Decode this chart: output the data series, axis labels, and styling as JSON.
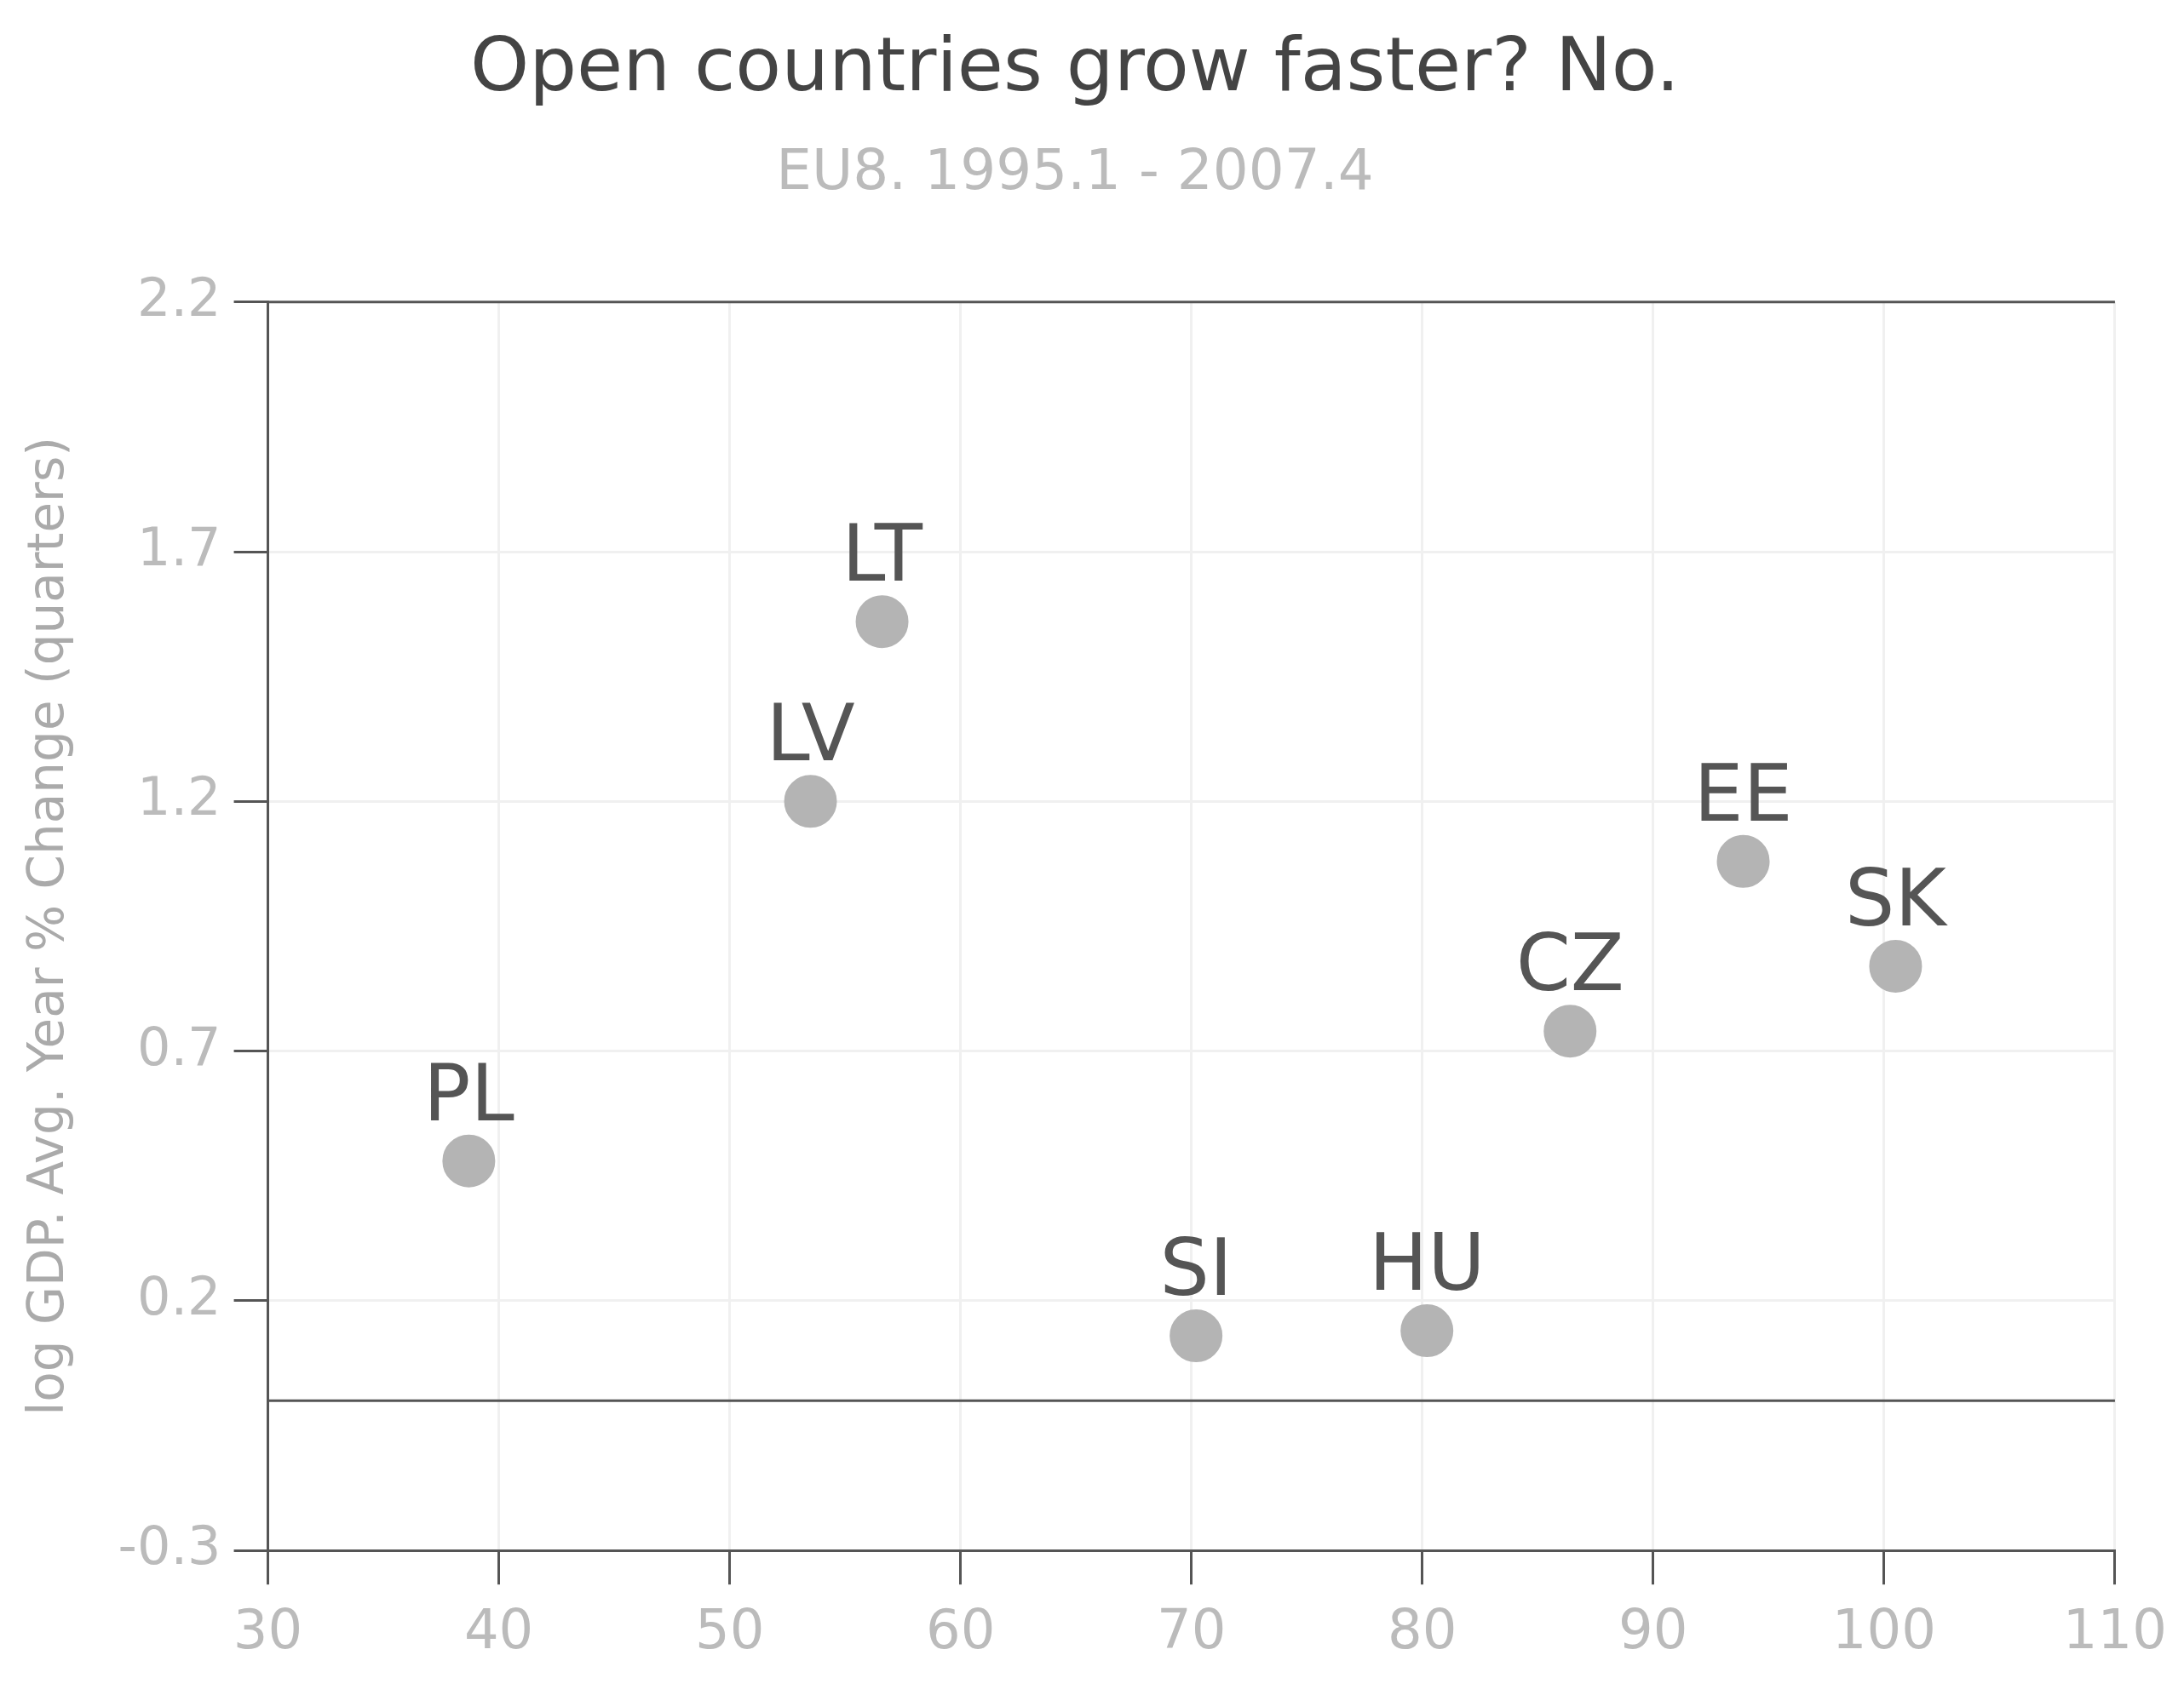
{
  "chart_data": {
    "type": "scatter",
    "title": "Open countries grow faster? No.",
    "subtitle": "EU8. 1995.1 - 2007.4",
    "ylabel": "log GDP. Avg. Year % Change (quarters)",
    "x": [
      38.7,
      53.5,
      56.6,
      70.2,
      80.2,
      86.4,
      93.9,
      100.5
    ],
    "values": [
      0.48,
      1.2,
      1.56,
      0.13,
      0.14,
      0.74,
      1.08,
      0.87
    ],
    "color": "#b4b4b4",
    "marker": "circle",
    "xlim": [
      30,
      110
    ],
    "xticks": [
      30,
      40,
      50,
      60,
      70,
      80,
      90,
      100,
      110
    ],
    "ylim": [
      -0.3,
      2.2
    ],
    "yticks": [
      {
        "value": -0.3,
        "label": "-0.3"
      },
      {
        "value": 0.2,
        "label": "0.2"
      },
      {
        "value": 0.7,
        "label": "0.7"
      },
      {
        "value": 1.2,
        "label": "1.2"
      },
      {
        "value": 1.7,
        "label": "1.7"
      },
      {
        "value": 2.2,
        "label": "2.2"
      }
    ],
    "grid": true,
    "ref_lines": [
      {
        "axis": "y",
        "value": 0,
        "color": "#555555"
      }
    ],
    "annotations": [
      {
        "text": "PL",
        "x": 38.7,
        "y": 0.48
      },
      {
        "text": "LV",
        "x": 53.5,
        "y": 1.2
      },
      {
        "text": "LT",
        "x": 56.6,
        "y": 1.56
      },
      {
        "text": "SI",
        "x": 70.2,
        "y": 0.13
      },
      {
        "text": "HU",
        "x": 80.2,
        "y": 0.14
      },
      {
        "text": "CZ",
        "x": 86.4,
        "y": 0.74
      },
      {
        "text": "EE",
        "x": 93.9,
        "y": 1.08
      },
      {
        "text": "SK",
        "x": 100.5,
        "y": 0.87
      }
    ]
  }
}
